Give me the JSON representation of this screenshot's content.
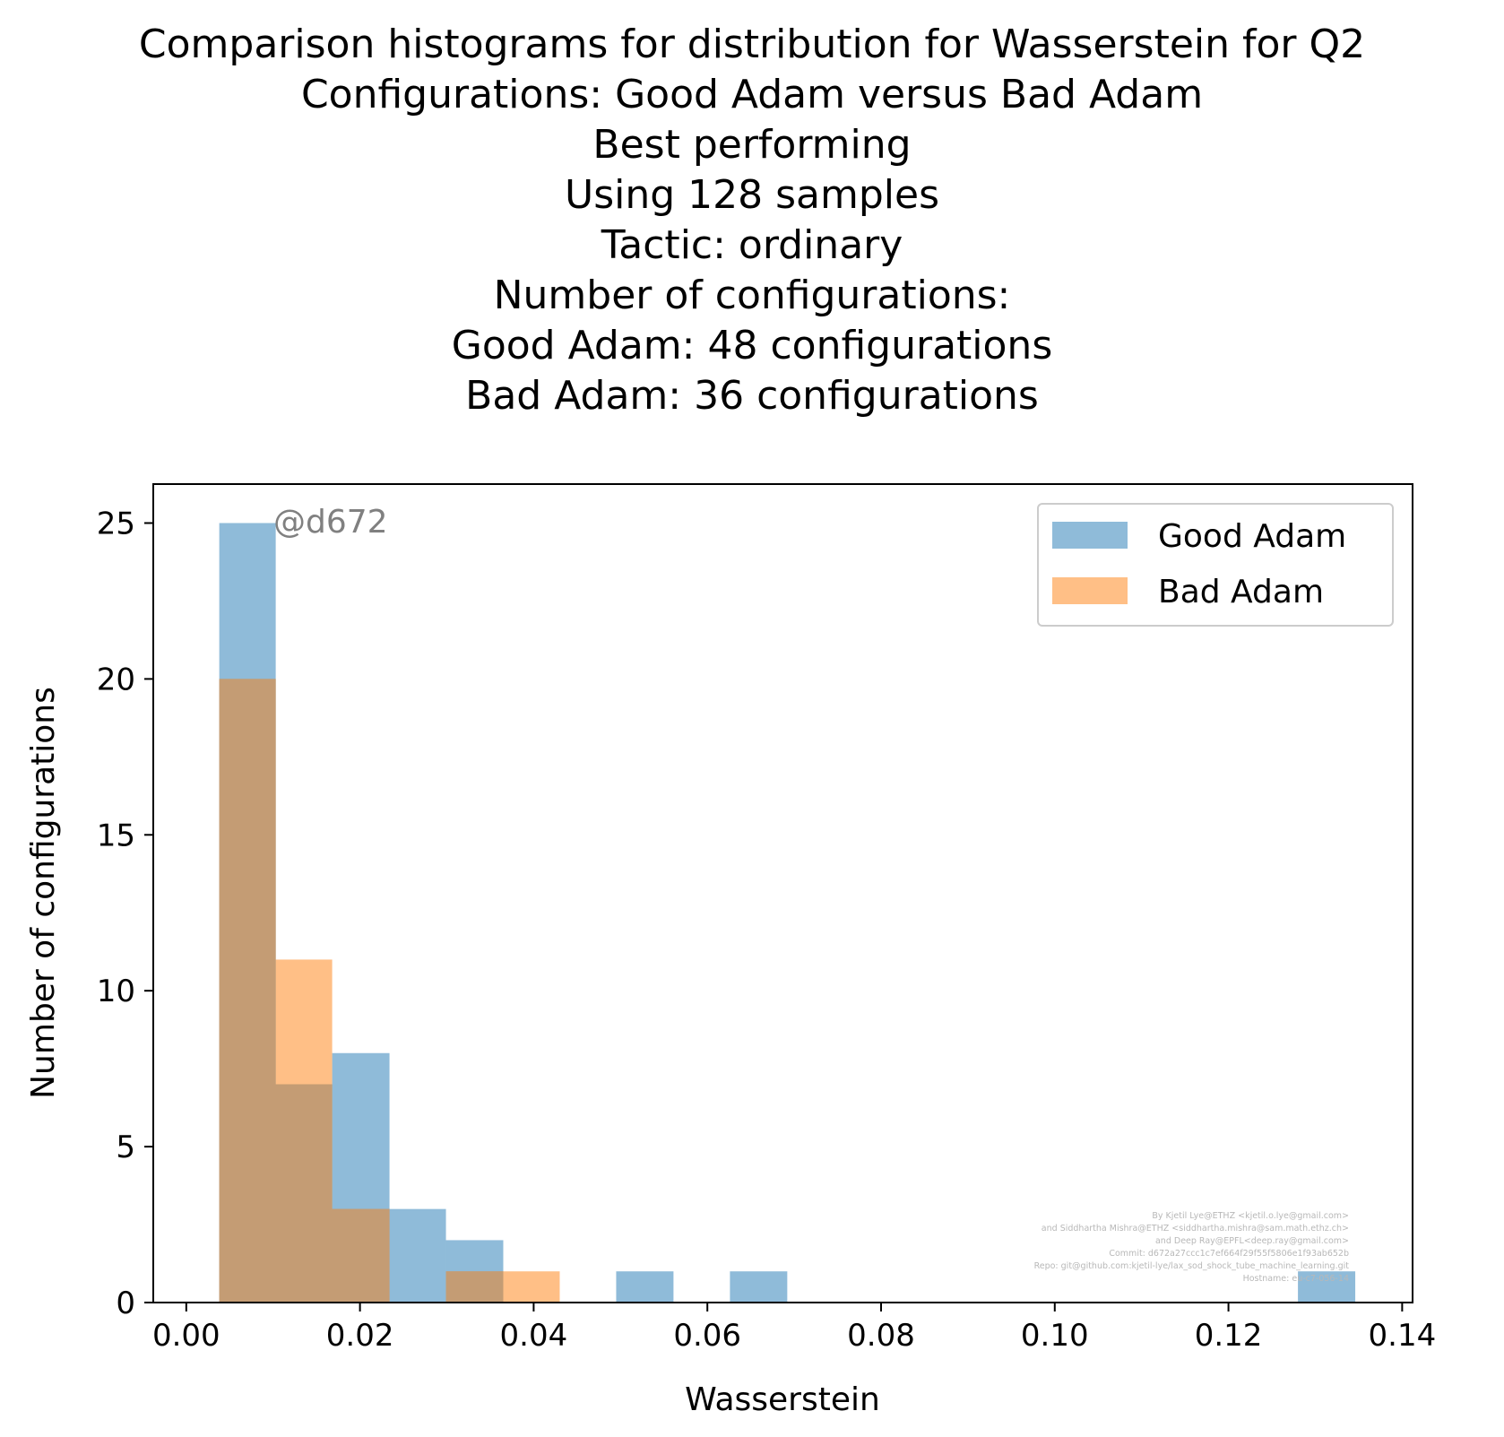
{
  "title_lines": [
    "Comparison histograms for distribution for Wasserstein for Q2",
    "Configurations: Good Adam versus Bad Adam",
    "Best performing",
    "Using 128 samples",
    "Tactic: ordinary",
    "Number of configurations:",
    "Good Adam: 48 configurations",
    "Bad Adam: 36 configurations"
  ],
  "annotation": "@d672",
  "credits": [
    "By Kjetil Lye@ETHZ <kjetil.o.lye@gmail.com>",
    "and Siddhartha Mishra@ETHZ <siddhartha.mishra@sam.math.ethz.ch>",
    "and Deep Ray@EPFL<deep.ray@gmail.com>",
    "Commit: d672a27ccc1c7ef664f29f55f5806e1f93ab652b",
    "Repo: git@github.com:kjetil-lye/lax_sod_shock_tube_machine_learning.git",
    "Hostname: eu-c7-056-14"
  ],
  "chart_data": {
    "type": "bar",
    "histogram": true,
    "xlabel": "Wasserstein",
    "ylabel": "Number of configurations",
    "xlim": [
      -0.0038,
      0.1412
    ],
    "ylim": [
      0,
      26.25
    ],
    "xticks": [
      0.0,
      0.02,
      0.04,
      0.06,
      0.08,
      0.1,
      0.12,
      0.14
    ],
    "xtick_labels": [
      "0.00",
      "0.02",
      "0.04",
      "0.06",
      "0.08",
      "0.10",
      "0.12",
      "0.14"
    ],
    "yticks": [
      0,
      5,
      10,
      15,
      20,
      25
    ],
    "ytick_labels": [
      "0",
      "5",
      "10",
      "15",
      "20",
      "25"
    ],
    "legend_position": "top-right",
    "grid": false,
    "overlap_color": "#c49c74",
    "series": [
      {
        "name": "Good Adam",
        "color": "#1f77b4",
        "alpha": 0.5,
        "bin_edges": [
          0.0038,
          0.0103,
          0.0168,
          0.0234,
          0.0299,
          0.0365,
          0.043,
          0.0495,
          0.0561,
          0.0626,
          0.0692,
          0.0757,
          0.0822,
          0.0888,
          0.0953,
          0.1019,
          0.1084,
          0.1149,
          0.1215,
          0.128,
          0.1346
        ],
        "counts": [
          25,
          7,
          8,
          3,
          2,
          0,
          0,
          1,
          0,
          1,
          0,
          0,
          0,
          0,
          0,
          0,
          0,
          0,
          0,
          1
        ]
      },
      {
        "name": "Bad Adam",
        "color": "#ff7f0e",
        "alpha": 0.5,
        "bin_edges": [
          0.0038,
          0.0103,
          0.0168,
          0.0234,
          0.0299,
          0.0365,
          0.043
        ],
        "counts": [
          20,
          11,
          3,
          0,
          1,
          1
        ]
      }
    ]
  }
}
